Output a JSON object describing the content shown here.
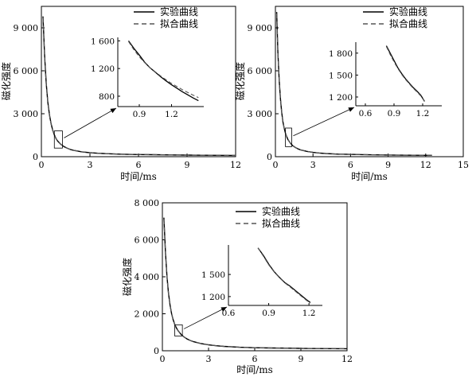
{
  "chart_data": [
    {
      "type": "line",
      "xlabel": "时间/ms",
      "ylabel": "磁化强度",
      "xlim": [
        0,
        12
      ],
      "ylim": [
        0,
        10500
      ],
      "xticks": [
        0,
        3,
        6,
        9,
        12
      ],
      "xtick_labels": [
        "0",
        "3",
        "6",
        "9",
        "12"
      ],
      "yticks": [
        0,
        3000,
        6000,
        9000
      ],
      "ytick_labels": [
        "0",
        "3 000",
        "6 000",
        "9 000"
      ],
      "legend": {
        "position": "top-right",
        "entries": [
          "实验曲线",
          "拟合曲线"
        ]
      },
      "series": [
        {
          "name": "实验曲线",
          "style": "solid",
          "x": [
            0.1,
            0.2,
            0.3,
            0.4,
            0.5,
            0.6,
            0.7,
            0.8,
            0.9,
            1.0,
            1.2,
            1.4,
            1.6,
            1.8,
            2.0,
            2.5,
            3.0,
            3.5,
            4.0,
            5.0,
            6.0,
            7.0,
            8.0,
            9.0,
            10.0,
            11.0,
            12.0
          ],
          "y": [
            9800,
            7000,
            5100,
            3800,
            2900,
            2300,
            1850,
            1520,
            1280,
            1100,
            860,
            700,
            590,
            500,
            440,
            340,
            280,
            240,
            210,
            170,
            150,
            140,
            125,
            110,
            100,
            95,
            90
          ]
        },
        {
          "name": "拟合曲线",
          "style": "dashed",
          "x": [
            0.1,
            0.2,
            0.3,
            0.4,
            0.5,
            0.6,
            0.7,
            0.8,
            0.9,
            1.0,
            1.2,
            1.4,
            1.6,
            1.8,
            2.0,
            2.5,
            3.0,
            3.5,
            4.0,
            5.0,
            6.0,
            7.0,
            8.0,
            9.0,
            10.0,
            11.0,
            12.0
          ],
          "y": [
            9700,
            6900,
            5050,
            3780,
            2890,
            2290,
            1840,
            1515,
            1270,
            1095,
            860,
            705,
            595,
            505,
            445,
            345,
            285,
            245,
            215,
            175,
            155,
            140,
            125,
            112,
            102,
            96,
            90
          ]
        }
      ],
      "inset": {
        "zoom_box": {
          "x": [
            0.8,
            1.3
          ],
          "y": [
            600,
            1800
          ]
        },
        "xlim": [
          0.7,
          1.5
        ],
        "ylim": [
          650,
          1650
        ],
        "xticks": [
          0.9,
          1.2
        ],
        "xtick_labels": [
          "0.9",
          "1.2"
        ],
        "yticks": [
          800,
          1200,
          1600
        ],
        "ytick_labels": [
          "800",
          "1 200",
          "1 600"
        ],
        "series": [
          {
            "name": "实验曲线",
            "style": "solid",
            "x": [
              0.8,
              0.85,
              0.9,
              0.95,
              1.0,
              1.05,
              1.1,
              1.15,
              1.2,
              1.25,
              1.3,
              1.35,
              1.4,
              1.45
            ],
            "y": [
              1600,
              1490,
              1395,
              1290,
              1210,
              1145,
              1080,
              1020,
              965,
              915,
              865,
              820,
              775,
              735
            ]
          },
          {
            "name": "拟合曲线",
            "style": "dashed",
            "x": [
              0.8,
              0.85,
              0.9,
              0.95,
              1.0,
              1.05,
              1.1,
              1.15,
              1.2,
              1.25,
              1.3,
              1.35,
              1.4,
              1.45
            ],
            "y": [
              1590,
              1470,
              1370,
              1285,
              1210,
              1150,
              1090,
              1035,
              985,
              940,
              895,
              855,
              815,
              780
            ]
          }
        ]
      }
    },
    {
      "type": "line",
      "xlabel": "时间/ms",
      "ylabel": "磁化强度",
      "xlim": [
        0,
        15
      ],
      "ylim": [
        0,
        10500
      ],
      "xticks": [
        0,
        3,
        6,
        9,
        12,
        15
      ],
      "xtick_labels": [
        "0",
        "3",
        "6",
        "9",
        "12",
        "15"
      ],
      "yticks": [
        0,
        3000,
        6000,
        9000
      ],
      "ytick_labels": [
        "0",
        "3 000",
        "6 000",
        "9 000"
      ],
      "legend": {
        "position": "top-right",
        "entries": [
          "实验曲线",
          "拟合曲线"
        ]
      },
      "series": [
        {
          "name": "实验曲线",
          "style": "solid",
          "x": [
            0.1,
            0.2,
            0.3,
            0.4,
            0.5,
            0.6,
            0.7,
            0.8,
            0.9,
            1.0,
            1.2,
            1.4,
            1.6,
            1.8,
            2.0,
            2.5,
            3.0,
            3.5,
            4.0,
            5.0,
            6.0,
            7.0,
            8.0,
            9.0,
            10.0,
            11.0,
            12.0,
            12.5
          ],
          "y": [
            10100,
            7300,
            5400,
            4050,
            3100,
            2450,
            1990,
            1650,
            1400,
            1200,
            940,
            760,
            640,
            550,
            480,
            370,
            300,
            255,
            220,
            180,
            160,
            145,
            130,
            118,
            108,
            100,
            95,
            92
          ]
        },
        {
          "name": "拟合曲线",
          "style": "dashed",
          "x": [
            0.1,
            0.2,
            0.3,
            0.4,
            0.5,
            0.6,
            0.7,
            0.8,
            0.9,
            1.0,
            1.2,
            1.4,
            1.6,
            1.8,
            2.0,
            2.5,
            3.0,
            3.5,
            4.0,
            5.0,
            6.0,
            7.0,
            8.0,
            9.0,
            10.0,
            11.0,
            12.0,
            12.5
          ],
          "y": [
            10000,
            7250,
            5380,
            4040,
            3095,
            2445,
            1985,
            1645,
            1395,
            1198,
            940,
            762,
            642,
            552,
            482,
            372,
            302,
            257,
            222,
            182,
            160,
            145,
            130,
            118,
            108,
            100,
            95,
            92
          ]
        }
      ],
      "inset": {
        "zoom_box": {
          "x": [
            0.8,
            1.3
          ],
          "y": [
            700,
            2000
          ]
        },
        "xlim": [
          0.5,
          1.4
        ],
        "ylim": [
          1080,
          1950
        ],
        "xticks": [
          0.6,
          0.9,
          1.2
        ],
        "xtick_labels": [
          "0.6",
          "0.9",
          "1.2"
        ],
        "yticks": [
          1200,
          1500,
          1800
        ],
        "ytick_labels": [
          "1 200",
          "1 500",
          "1 800"
        ],
        "series": [
          {
            "name": "实验曲线",
            "style": "solid",
            "x": [
              0.82,
              0.86,
              0.9,
              0.94,
              0.98,
              1.02,
              1.06,
              1.1,
              1.14,
              1.18,
              1.22
            ],
            "y": [
              1900,
              1800,
              1700,
              1600,
              1520,
              1450,
              1390,
              1330,
              1280,
              1225,
              1140
            ]
          },
          {
            "name": "拟合曲线",
            "style": "dashed",
            "x": [
              0.82,
              0.86,
              0.9,
              0.94,
              0.98,
              1.02,
              1.06,
              1.1,
              1.14,
              1.18,
              1.22
            ],
            "y": [
              1890,
              1780,
              1680,
              1590,
              1510,
              1440,
              1380,
              1320,
              1270,
              1215,
              1140
            ]
          }
        ]
      }
    },
    {
      "type": "line",
      "xlabel": "时间/ms",
      "ylabel": "磁化强度",
      "xlim": [
        0,
        12
      ],
      "ylim": [
        0,
        8000
      ],
      "xticks": [
        0,
        3,
        6,
        9,
        12
      ],
      "xtick_labels": [
        "0",
        "3",
        "6",
        "9",
        "12"
      ],
      "yticks": [
        0,
        2000,
        4000,
        6000,
        8000
      ],
      "ytick_labels": [
        "0",
        "2 000",
        "4 000",
        "6 000",
        "8 000"
      ],
      "legend": {
        "position": "top-right",
        "entries": [
          "实验曲线",
          "拟合曲线"
        ]
      },
      "series": [
        {
          "name": "实验曲线",
          "style": "solid",
          "x": [
            0.1,
            0.2,
            0.3,
            0.4,
            0.5,
            0.6,
            0.7,
            0.8,
            0.9,
            1.0,
            1.2,
            1.4,
            1.6,
            1.8,
            2.0,
            2.5,
            3.0,
            3.5,
            4.0,
            5.0,
            6.0,
            7.0,
            8.0,
            9.0,
            10.0,
            11.0,
            12.0
          ],
          "y": [
            7200,
            5300,
            4000,
            3100,
            2450,
            2000,
            1680,
            1430,
            1250,
            1110,
            900,
            750,
            640,
            560,
            500,
            390,
            320,
            270,
            235,
            190,
            165,
            150,
            140,
            130,
            120,
            115,
            110
          ]
        },
        {
          "name": "拟合曲线",
          "style": "dashed",
          "x": [
            0.1,
            0.2,
            0.3,
            0.4,
            0.5,
            0.6,
            0.7,
            0.8,
            0.9,
            1.0,
            1.2,
            1.4,
            1.6,
            1.8,
            2.0,
            2.5,
            3.0,
            3.5,
            4.0,
            5.0,
            6.0,
            7.0,
            8.0,
            9.0,
            10.0,
            11.0,
            12.0
          ],
          "y": [
            7100,
            5250,
            3980,
            3090,
            2445,
            1995,
            1675,
            1428,
            1248,
            1108,
            900,
            752,
            642,
            562,
            502,
            392,
            322,
            272,
            237,
            192,
            166,
            150,
            140,
            130,
            120,
            115,
            110
          ]
        }
      ],
      "inset": {
        "zoom_box": {
          "x": [
            0.8,
            1.3
          ],
          "y": [
            800,
            1400
          ]
        },
        "xlim": [
          0.6,
          1.3
        ],
        "ylim": [
          1080,
          1900
        ],
        "xticks": [
          0.6,
          0.9,
          1.2
        ],
        "xtick_labels": [
          "0.6",
          "0.9",
          "1.2"
        ],
        "yticks": [
          1200,
          1500
        ],
        "ytick_labels": [
          "1 200",
          "1 500"
        ],
        "series": [
          {
            "name": "实验曲线",
            "style": "solid",
            "x": [
              0.82,
              0.86,
              0.9,
              0.94,
              0.98,
              1.02,
              1.06,
              1.1,
              1.14,
              1.18,
              1.21
            ],
            "y": [
              1860,
              1760,
              1640,
              1540,
              1460,
              1390,
              1340,
              1280,
              1220,
              1160,
              1120
            ]
          },
          {
            "name": "拟合曲线",
            "style": "dashed",
            "x": [
              0.82,
              0.86,
              0.9,
              0.94,
              0.98,
              1.02,
              1.06,
              1.1,
              1.14,
              1.18,
              1.21
            ],
            "y": [
              1860,
              1750,
              1630,
              1535,
              1455,
              1385,
              1330,
              1270,
              1210,
              1150,
              1110
            ]
          }
        ]
      }
    }
  ]
}
